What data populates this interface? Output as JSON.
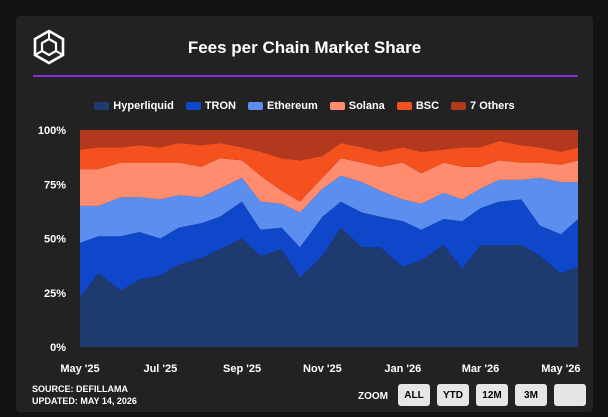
{
  "page": {
    "title": "Fees per Chain Market Share"
  },
  "colors": {
    "background": "#222222",
    "accent_rule": "#8a2be2"
  },
  "footer": {
    "source": "SOURCE: DEFILLAMA",
    "updated": "UPDATED: MAY 14, 2026"
  },
  "zoom": {
    "label": "ZOOM",
    "buttons": [
      "ALL",
      "YTD",
      "12M",
      "3M",
      ""
    ]
  },
  "chart_data": {
    "type": "area",
    "title": "Fees per Chain Market Share",
    "stacked": true,
    "normalized": true,
    "xlabel": "",
    "ylabel": "",
    "ylim": [
      0,
      100
    ],
    "yticks": [
      "0%",
      "25%",
      "50%",
      "75%",
      "100%"
    ],
    "xticks": [
      "May '25",
      "Jul '25",
      "Sep '25",
      "Nov '25",
      "Jan '26",
      "Mar '26",
      "May '26"
    ],
    "legend_position": "top",
    "grid": false,
    "x": [
      "2025-05-01",
      "2025-05-15",
      "2025-06-01",
      "2025-06-15",
      "2025-07-01",
      "2025-07-15",
      "2025-08-01",
      "2025-08-15",
      "2025-09-01",
      "2025-09-15",
      "2025-10-01",
      "2025-10-15",
      "2025-11-01",
      "2025-11-15",
      "2025-12-01",
      "2025-12-15",
      "2026-01-01",
      "2026-01-15",
      "2026-02-01",
      "2026-02-15",
      "2026-03-01",
      "2026-03-15",
      "2026-04-01",
      "2026-04-15",
      "2026-05-01",
      "2026-05-14"
    ],
    "series": [
      {
        "name": "Hyperliquid",
        "color": "#1f3a6e",
        "values": [
          23,
          34,
          26,
          31,
          33,
          38,
          41,
          45,
          50,
          42,
          45,
          32,
          42,
          55,
          46,
          46,
          37,
          40,
          47,
          36,
          47,
          47,
          47,
          42,
          34,
          37
        ]
      },
      {
        "name": "TRON",
        "color": "#0e47c9",
        "values": [
          25,
          17,
          25,
          22,
          17,
          17,
          16,
          15,
          17,
          12,
          10,
          14,
          18,
          12,
          16,
          14,
          21,
          14,
          12,
          22,
          17,
          20,
          21,
          14,
          18,
          22
        ]
      },
      {
        "name": "Ethereum",
        "color": "#5c8ef0",
        "values": [
          17,
          14,
          18,
          16,
          18,
          15,
          12,
          13,
          11,
          13,
          11,
          16,
          13,
          12,
          14,
          12,
          10,
          12,
          12,
          10,
          9,
          10,
          9,
          22,
          24,
          17
        ]
      },
      {
        "name": "Solana",
        "color": "#ff8c6e",
        "values": [
          17,
          17,
          16,
          16,
          17,
          15,
          14,
          14,
          8,
          12,
          6,
          5,
          5,
          8,
          9,
          11,
          17,
          14,
          14,
          15,
          10,
          9,
          8,
          7,
          8,
          10
        ]
      },
      {
        "name": "BSC",
        "color": "#f4511e",
        "values": [
          9,
          10,
          7,
          8,
          7,
          9,
          10,
          7,
          6,
          11,
          15,
          19,
          10,
          7,
          7,
          7,
          7,
          10,
          6,
          9,
          9,
          9,
          8,
          7,
          6,
          6
        ]
      },
      {
        "name": "7 Others",
        "color": "#b3381e",
        "values": [
          9,
          8,
          8,
          7,
          8,
          6,
          7,
          6,
          8,
          10,
          13,
          14,
          12,
          6,
          8,
          10,
          8,
          10,
          9,
          8,
          8,
          5,
          7,
          8,
          10,
          8
        ]
      }
    ]
  }
}
